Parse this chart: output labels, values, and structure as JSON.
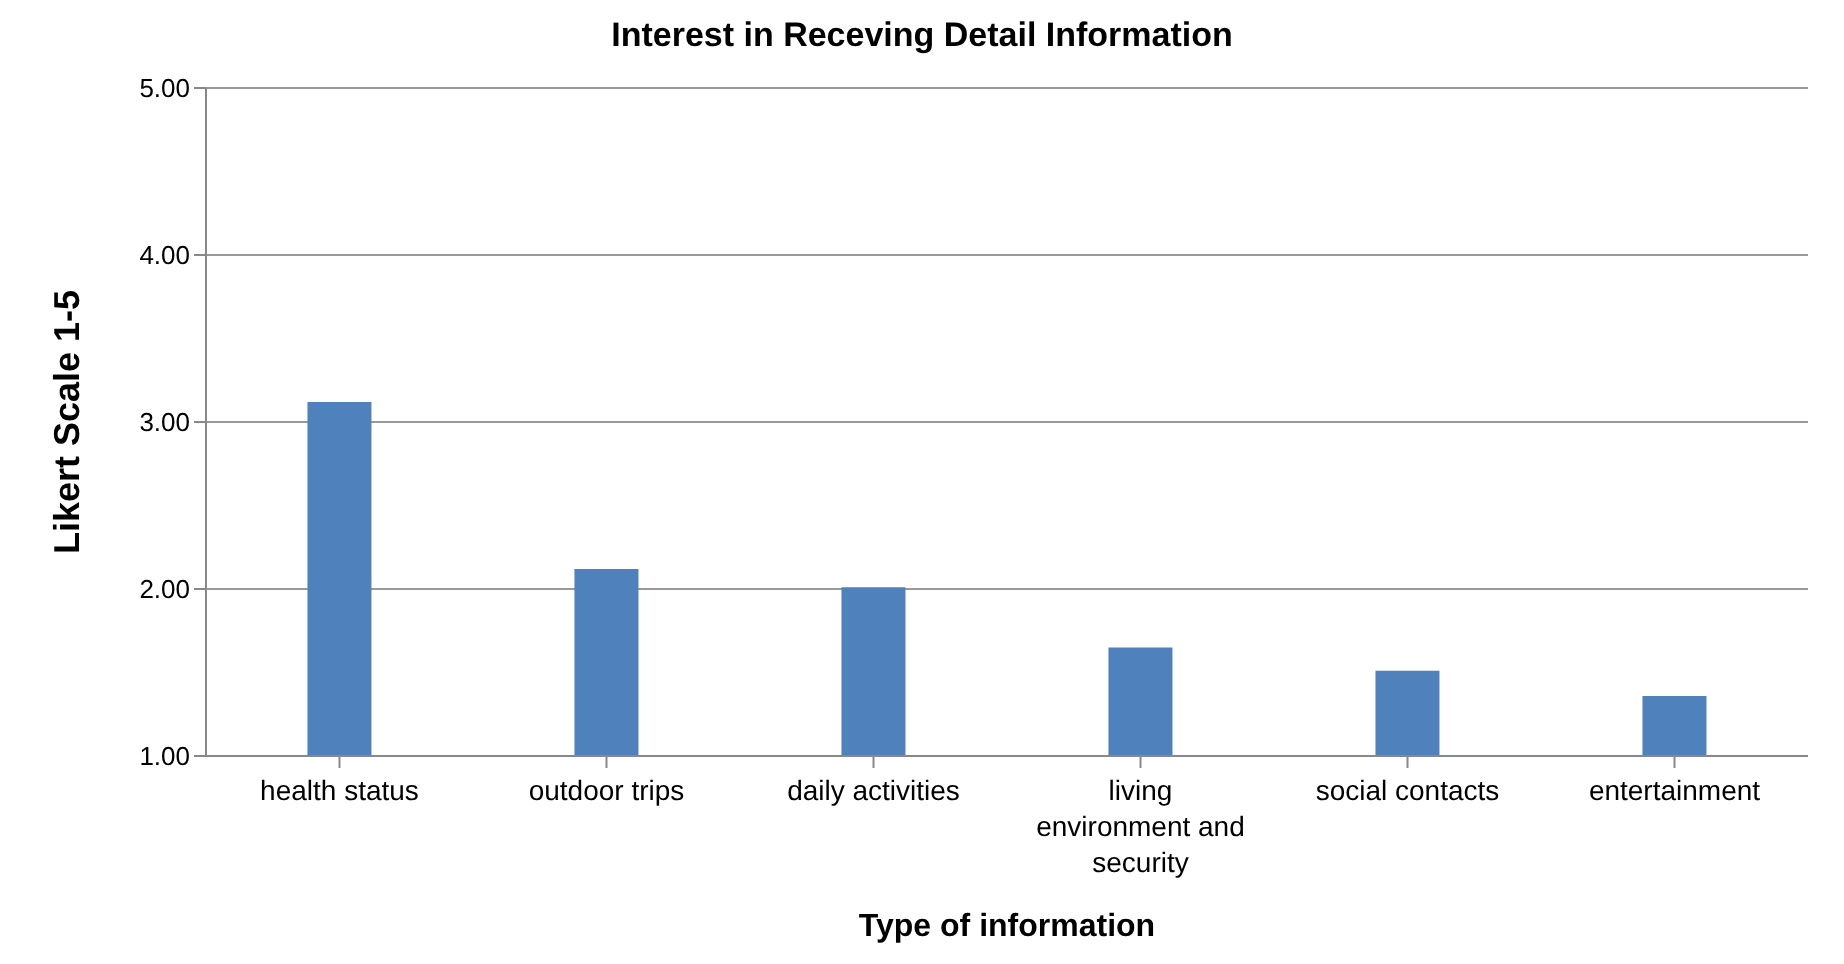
{
  "chart_data": {
    "type": "bar",
    "title": "Interest in Receving Detail Information",
    "xlabel": "Type of information",
    "ylabel": "Likert Scale 1-5",
    "categories": [
      "health status",
      "outdoor trips",
      "daily activities",
      "living environment and security",
      "social contacts",
      "entertainment"
    ],
    "values": [
      3.12,
      2.12,
      2.01,
      1.65,
      1.51,
      1.36
    ],
    "color": "#4f81bd",
    "ylim": [
      1,
      5
    ],
    "yticks": [
      {
        "value": 1,
        "label": "1.00"
      },
      {
        "value": 2,
        "label": "2.00"
      },
      {
        "value": 3,
        "label": "3.00"
      },
      {
        "value": 4,
        "label": "4.00"
      },
      {
        "value": 5,
        "label": "5.00"
      }
    ],
    "grid": "y"
  }
}
